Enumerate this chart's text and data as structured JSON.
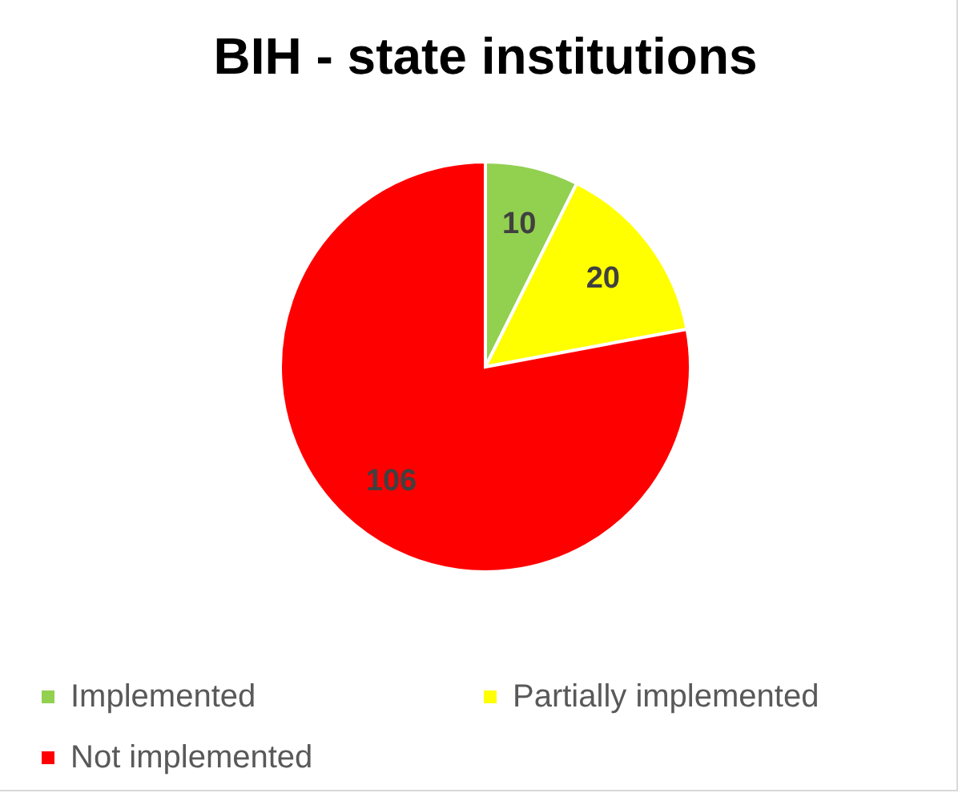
{
  "chart_data": {
    "type": "pie",
    "title": "BIH - state institutions",
    "categories": [
      "Implemented",
      "Partially implemented",
      "Not implemented"
    ],
    "values": [
      10,
      20,
      106
    ],
    "colors": [
      "#92d050",
      "#ffff00",
      "#ff0000"
    ],
    "data_labels": true,
    "legend": "bottom"
  }
}
